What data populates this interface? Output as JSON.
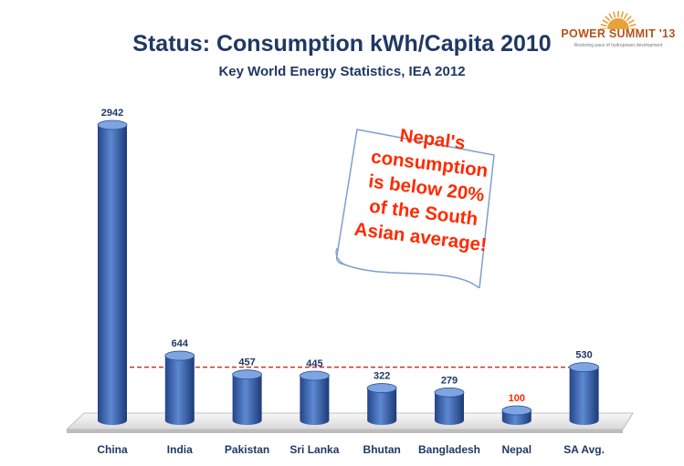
{
  "title": "Status: Consumption kWh/Capita 2010",
  "subtitle": "Key World Energy Statistics, IEA 2012",
  "logo": {
    "text": "POWER SUMMIT '13",
    "tagline": "Restoring pace of hydropower development",
    "sun_color": "#e8a23a"
  },
  "note": {
    "lines": [
      "Nepal's",
      "consumption",
      "is below 20%",
      "of the South",
      "Asian average!"
    ],
    "color": "#ff2a00"
  },
  "chart_data": {
    "type": "bar",
    "categories": [
      "China",
      "India",
      "Pakistan",
      "Sri Lanka",
      "Bhutan",
      "Bangladesh",
      "Nepal",
      "SA Avg."
    ],
    "values": [
      2942,
      644,
      457,
      445,
      322,
      279,
      100,
      530
    ],
    "label_colors": [
      "#1f3864",
      "#1f3864",
      "#1f3864",
      "#1f3864",
      "#1f3864",
      "#1f3864",
      "#ff2a00",
      "#1f3864"
    ],
    "reference_line": {
      "value": 530,
      "style": "dashed",
      "color": "#c0392b"
    },
    "title": "Status: Consumption kWh/Capita 2010",
    "xlabel": "",
    "ylabel": "",
    "ylim": [
      0,
      2942
    ],
    "bar_color": "#3a66b0",
    "grid": false,
    "legend": "none"
  }
}
